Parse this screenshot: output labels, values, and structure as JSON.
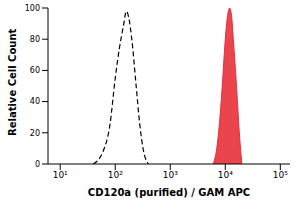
{
  "chart_data": {
    "type": "line",
    "xlabel": "CD120a (purified) / GAM APC",
    "ylabel": "Relative Cell Count",
    "log": "x",
    "xlim": [
      6,
      150000
    ],
    "xticks": [
      {
        "value": 10,
        "label": "10¹"
      },
      {
        "value": 100,
        "label": "10²"
      },
      {
        "value": 1000,
        "label": "10³"
      },
      {
        "value": 10000,
        "label": "10⁴"
      },
      {
        "value": 100000,
        "label": "10⁵"
      }
    ],
    "ylim": [
      0,
      100
    ],
    "yticks": [
      0,
      20,
      40,
      60,
      80,
      100
    ],
    "grid": false,
    "series": [
      {
        "type": "line",
        "color": "#000000",
        "line_style": "dashed",
        "x": [
          40,
          60,
          80,
          100,
          120,
          140,
          160,
          180,
          200,
          240,
          280,
          320,
          400
        ],
        "values": [
          0,
          8,
          25,
          55,
          75,
          88,
          98,
          92,
          80,
          50,
          25,
          10,
          0
        ]
      },
      {
        "type": "area",
        "color": "#e8303a",
        "line_style": "solid",
        "x": [
          6000,
          7000,
          8000,
          9000,
          10000,
          11000,
          12000,
          13000,
          14000,
          16000,
          18000,
          20000
        ],
        "values": [
          0,
          10,
          30,
          55,
          80,
          95,
          100,
          95,
          80,
          50,
          20,
          0
        ]
      }
    ]
  }
}
